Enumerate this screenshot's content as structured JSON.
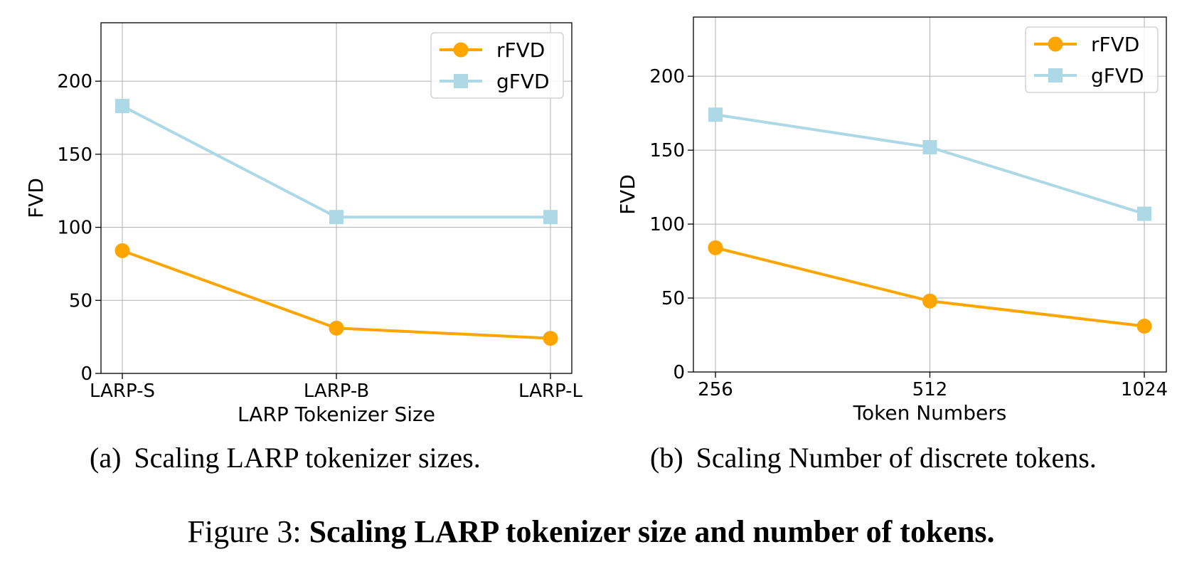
{
  "colors": {
    "rfvd": "#FFA500",
    "gfvd": "#ADD8E6",
    "grid": "#b0b0b0",
    "axis": "#000000"
  },
  "chart_data": [
    {
      "type": "line",
      "xlabel": "LARP Tokenizer Size",
      "ylabel": "FVD",
      "categories": [
        "LARP-S",
        "LARP-B",
        "LARP-L"
      ],
      "ylim": [
        0,
        240
      ],
      "yticks": [
        0,
        50,
        100,
        150,
        200
      ],
      "grid": true,
      "legend_position": "top-right",
      "series": [
        {
          "name": "rFVD",
          "marker": "circle",
          "color": "#FFA500",
          "values": [
            84,
            31,
            24
          ]
        },
        {
          "name": "gFVD",
          "marker": "square",
          "color": "#ADD8E6",
          "values": [
            183,
            107,
            107
          ]
        }
      ]
    },
    {
      "type": "line",
      "xlabel": "Token Numbers",
      "ylabel": "FVD",
      "categories": [
        "256",
        "512",
        "1024"
      ],
      "ylim": [
        0,
        240
      ],
      "yticks": [
        0,
        50,
        100,
        150,
        200
      ],
      "grid": true,
      "legend_position": "top-right",
      "series": [
        {
          "name": "rFVD",
          "marker": "circle",
          "color": "#FFA500",
          "values": [
            84,
            48,
            31
          ]
        },
        {
          "name": "gFVD",
          "marker": "square",
          "color": "#ADD8E6",
          "values": [
            174,
            152,
            107
          ]
        }
      ]
    }
  ],
  "subcaptions": [
    {
      "tag": "(a)",
      "text": "Scaling LARP tokenizer sizes."
    },
    {
      "tag": "(b)",
      "text": "Scaling Number of discrete tokens."
    }
  ],
  "figure_caption": {
    "prefix": "Figure 3:",
    "bold": "Scaling LARP tokenizer size and number of tokens."
  }
}
